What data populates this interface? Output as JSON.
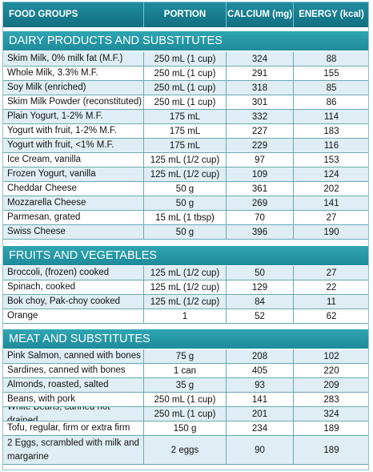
{
  "header": {
    "food_groups": "FOOD GROUPS",
    "portion": "PORTION",
    "calcium": "CALCIUM (mg)",
    "energy": "ENERGY (kcal)"
  },
  "sections": [
    {
      "title": "DAIRY PRODUCTS AND SUBSTITUTES",
      "rows": [
        [
          "Skim Milk, 0% milk fat (M.F.)",
          "250 mL (1 cup)",
          "324",
          "88"
        ],
        [
          "Whole Milk, 3.3% M.F.",
          "250 mL (1 cup)",
          "291",
          "155"
        ],
        [
          "Soy Milk (enriched)",
          "250 mL (1 cup)",
          "318",
          "85"
        ],
        [
          "Skim Milk Powder (reconstituted)",
          "250 mL (1 cup)",
          "301",
          "86"
        ],
        [
          "Plain Yogurt, 1-2% M.F.",
          "175 mL",
          "332",
          "114"
        ],
        [
          "Yogurt with fruit, 1-2% M.F.",
          "175 mL",
          "227",
          "183"
        ],
        [
          "Yogurt with fruit, <1% M.F.",
          "175 mL",
          "229",
          "116"
        ],
        [
          "Ice Cream, vanilla",
          "125 mL (1/2 cup)",
          "97",
          "153"
        ],
        [
          "Frozen Yogurt, vanilla",
          "125 mL (1/2 cup)",
          "109",
          "124"
        ],
        [
          "Cheddar Cheese",
          "50 g",
          "361",
          "202"
        ],
        [
          "Mozzarella Cheese",
          "50 g",
          "269",
          "141"
        ],
        [
          "Parmesan, grated",
          "15 mL  (1 tbsp)",
          "70",
          "27"
        ],
        [
          "Swiss Cheese",
          "50 g",
          "396",
          "190"
        ]
      ]
    },
    {
      "title": "FRUITS AND VEGETABLES",
      "rows": [
        [
          "Broccoli, (frozen) cooked",
          "125 mL (1/2 cup)",
          "50",
          "27"
        ],
        [
          "Spinach, cooked",
          "125 mL (1/2 cup)",
          "129",
          "22"
        ],
        [
          "Bok choy, Pak-choy cooked",
          "125 mL (1/2 cup)",
          "84",
          "11"
        ],
        [
          "Orange",
          "1",
          "52",
          "62"
        ]
      ]
    },
    {
      "title": "MEAT AND SUBSTITUTES",
      "rows": [
        [
          "Pink Salmon, canned with bones",
          "75 g",
          "208",
          "102"
        ],
        [
          "Sardines, canned with bones",
          "1 can",
          "405",
          "220"
        ],
        [
          "Almonds, roasted, salted",
          "35 g",
          "93",
          "209"
        ],
        [
          "Beans, with pork",
          "250 mL  (1 cup)",
          "141",
          "283"
        ],
        [
          "White Beans, canned not drained",
          "250 mL  (1 cup)",
          "201",
          "324"
        ],
        [
          "Tofu, regular, firm or extra firm",
          "150 g",
          "234",
          "189"
        ],
        [
          "2 Eggs, scrambled with milk and margarine",
          "2 eggs",
          "90",
          "189"
        ]
      ]
    }
  ]
}
